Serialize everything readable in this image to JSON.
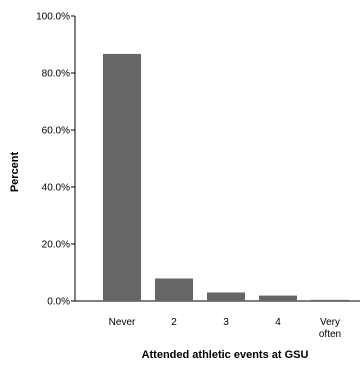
{
  "chart_data": {
    "type": "bar",
    "categories": [
      "Never",
      "2",
      "3",
      "4",
      "Very often"
    ],
    "category_lines": [
      [
        "Never"
      ],
      [
        "2"
      ],
      [
        "3"
      ],
      [
        "4"
      ],
      [
        "Very",
        "often"
      ]
    ],
    "values": [
      86.7,
      7.9,
      3.0,
      1.9,
      0.4
    ],
    "xlabel": "Attended athletic events at GSU",
    "ylabel": "Percent",
    "ylim": [
      0,
      100
    ],
    "yticks": [
      0,
      20,
      40,
      60,
      80,
      100
    ],
    "ytick_labels": [
      "0.0%",
      "20.0%",
      "40.0%",
      "60.0%",
      "80.0%",
      "100.0%"
    ],
    "grid": false,
    "bar_color": "#666666"
  }
}
